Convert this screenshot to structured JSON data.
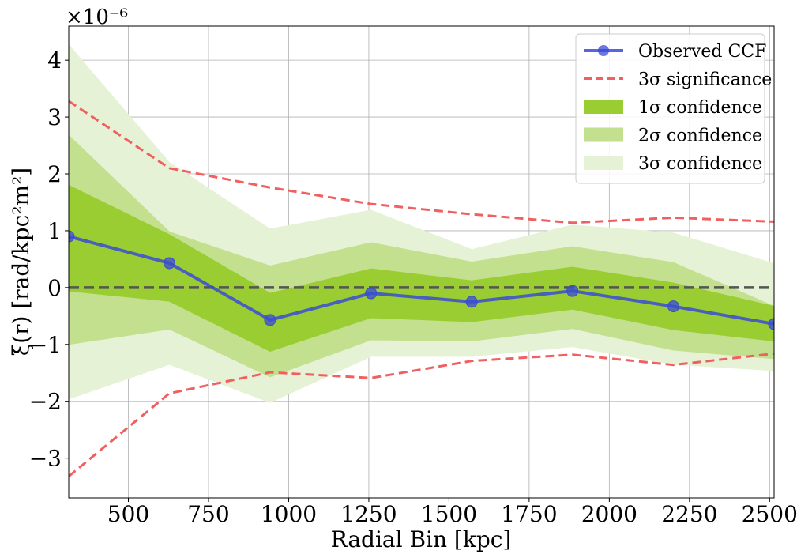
{
  "chart_data": {
    "type": "line",
    "xlabel": "Radial Bin [kpc]",
    "ylabel": "ξ(r) [rad/kpc²m²]",
    "y_scale_label": "×10⁻⁶",
    "xlim": [
      314,
      2514
    ],
    "ylim": [
      -3.7,
      4.6
    ],
    "xticks": [
      500,
      750,
      1000,
      1250,
      1500,
      1750,
      2000,
      2250,
      2500
    ],
    "xtick_labels": [
      "500",
      "750",
      "1000",
      "1250",
      "1500",
      "1750",
      "2000",
      "2250",
      "2500"
    ],
    "yticks": [
      -3,
      -2,
      -1,
      0,
      1,
      2,
      3,
      4
    ],
    "ytick_labels": [
      "−3",
      "−2",
      "−1",
      "0",
      "1",
      "2",
      "3",
      "4"
    ],
    "grid": true,
    "legend_position": "top-right",
    "x": [
      314,
      628,
      942,
      1257,
      1571,
      1885,
      2200,
      2514
    ],
    "series": [
      {
        "name": "Observed CCF",
        "style": "line-markers",
        "color": "#3a4bd4",
        "values": [
          0.9,
          0.43,
          -0.57,
          -0.1,
          -0.25,
          -0.06,
          -0.33,
          -0.64
        ]
      },
      {
        "name": "3σ significance",
        "style": "dashed",
        "color": "#f06060",
        "upper": [
          3.28,
          2.1,
          1.76,
          1.47,
          1.29,
          1.14,
          1.23,
          1.16
        ],
        "lower": [
          -3.32,
          -1.86,
          -1.49,
          -1.59,
          -1.29,
          -1.18,
          -1.36,
          -1.16
        ]
      }
    ],
    "bands": [
      {
        "name": "3σ confidence",
        "color": "#e6f2d5",
        "upper": [
          4.27,
          2.2,
          1.03,
          1.36,
          0.67,
          1.1,
          0.96,
          0.42
        ],
        "lower": [
          -1.96,
          -1.35,
          -2.02,
          -1.21,
          -1.21,
          -1.04,
          -1.35,
          -1.46
        ]
      },
      {
        "name": "2σ confidence",
        "color": "#c2e08e",
        "upper": [
          2.68,
          0.98,
          0.38,
          0.79,
          0.45,
          0.72,
          0.44,
          -0.33
        ],
        "lower": [
          -1.0,
          -0.73,
          -1.57,
          -0.92,
          -0.94,
          -0.72,
          -1.1,
          -1.25
        ]
      },
      {
        "name": "1σ confidence",
        "color": "#9acd32",
        "upper": [
          1.8,
          0.93,
          -0.1,
          0.33,
          0.12,
          0.36,
          0.08,
          -0.33
        ],
        "lower": [
          -0.06,
          -0.24,
          -1.12,
          -0.53,
          -0.6,
          -0.38,
          -0.74,
          -0.94
        ]
      }
    ],
    "reference_line": {
      "y": 0,
      "style": "dashed",
      "color": "#555555"
    },
    "legend": [
      {
        "label": "Observed CCF",
        "kind": "line-marker",
        "color": "#3a4bd4"
      },
      {
        "label": "3σ significance",
        "kind": "dashed",
        "color": "#f06060"
      },
      {
        "label": "1σ confidence",
        "kind": "patch",
        "color": "#9acd32"
      },
      {
        "label": "2σ confidence",
        "kind": "patch",
        "color": "#c2e08e"
      },
      {
        "label": "3σ confidence",
        "kind": "patch",
        "color": "#e6f2d5"
      }
    ]
  }
}
